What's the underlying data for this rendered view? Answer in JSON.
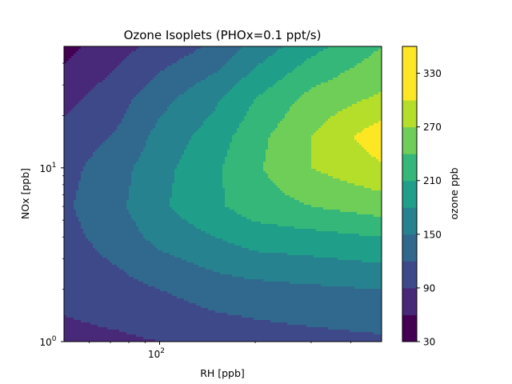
{
  "chart_data": {
    "type": "contourf",
    "title": "Ozone Isoplets (PHOx=0.1 ppt/s)",
    "xlabel": "RH [ppb]",
    "ylabel": "NOx [ppb]",
    "xscale": "log",
    "yscale": "log",
    "xlim": [
      50,
      500
    ],
    "ylim": [
      1,
      50
    ],
    "x_ticks": [
      {
        "value": 100,
        "base": "10",
        "exp": "2"
      }
    ],
    "y_ticks": [
      {
        "value": 1,
        "base": "10",
        "exp": "0"
      },
      {
        "value": 10,
        "base": "10",
        "exp": "1"
      }
    ],
    "colorbar": {
      "label": "ozone ppb",
      "levels": [
        30,
        60,
        90,
        120,
        150,
        180,
        210,
        240,
        270,
        300,
        330,
        360
      ],
      "tick_labels": [
        "30",
        "90",
        "150",
        "210",
        "270",
        "330"
      ],
      "colors": [
        "#440154",
        "#482878",
        "#3e4989",
        "#31688e",
        "#26828e",
        "#1f9e89",
        "#35b779",
        "#6ece58",
        "#b5de2b",
        "#fde725",
        "#fde725"
      ]
    },
    "grid_x": [
      50,
      75,
      100,
      150,
      200,
      300,
      500
    ],
    "grid_y": [
      1,
      2,
      4,
      6,
      10,
      15,
      25,
      50
    ],
    "z": [
      [
        80,
        85,
        90,
        100,
        105,
        110,
        115
      ],
      [
        100,
        110,
        120,
        135,
        140,
        145,
        150
      ],
      [
        110,
        135,
        160,
        180,
        195,
        200,
        210
      ],
      [
        115,
        145,
        175,
        205,
        225,
        240,
        255
      ],
      [
        110,
        140,
        170,
        205,
        235,
        270,
        295
      ],
      [
        100,
        125,
        160,
        195,
        230,
        270,
        320
      ],
      [
        80,
        110,
        140,
        175,
        210,
        250,
        275
      ],
      [
        50,
        80,
        100,
        125,
        160,
        200,
        240
      ]
    ]
  }
}
